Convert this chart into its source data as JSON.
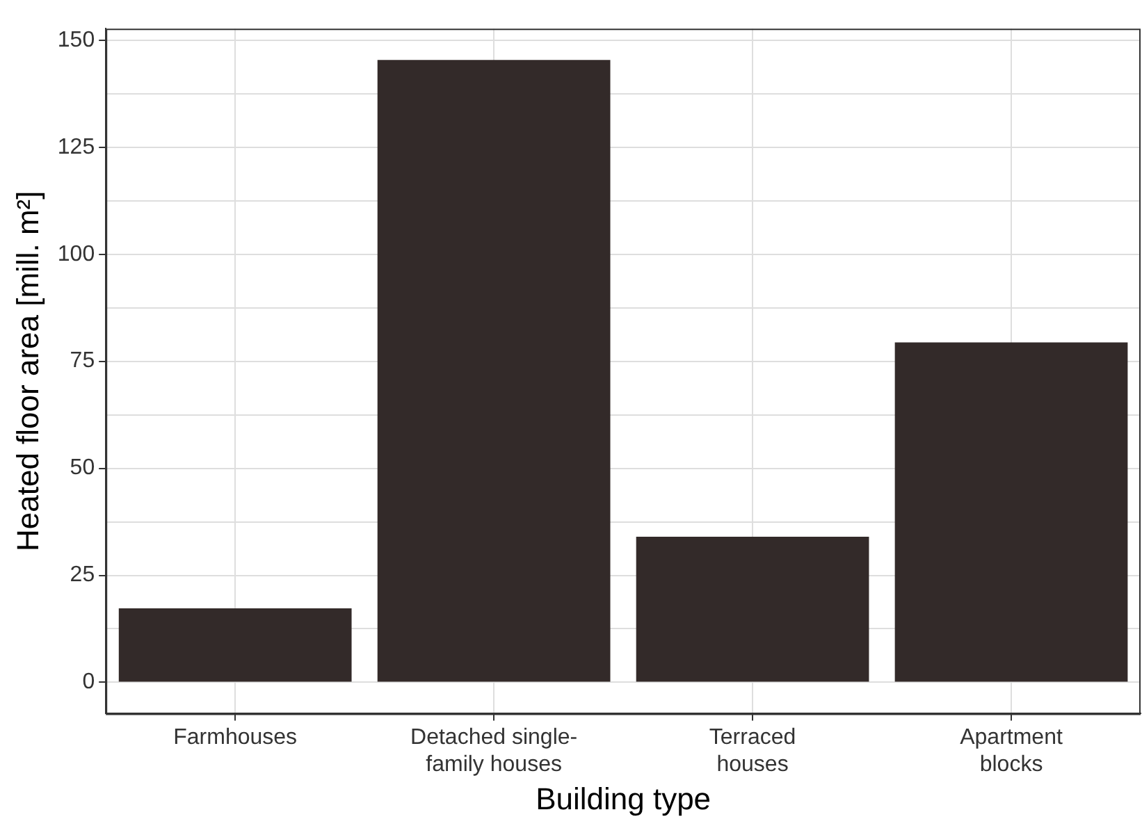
{
  "chart_data": {
    "type": "bar",
    "xlabel": "Building type",
    "ylabel": "Heated floor area [mill. m²]",
    "categories": [
      "Farmhouses",
      "Detached single-\nfamily houses",
      "Terraced\nhouses",
      "Apartment\nblocks"
    ],
    "values": [
      17.3,
      145.4,
      34,
      79.4
    ],
    "color": "#332a29",
    "ylim": [
      -7.3,
      152.7
    ],
    "yticks": [
      0,
      {
        "value": 12.5,
        "label": null
      },
      25,
      {
        "value": 37.5,
        "label": null
      },
      50,
      {
        "value": 62.5,
        "label": null
      },
      75,
      {
        "value": 87.5,
        "label": null
      },
      100,
      {
        "value": 112.5,
        "label": null
      },
      125,
      {
        "value": 137.5,
        "label": null
      },
      150
    ],
    "grid": true
  }
}
